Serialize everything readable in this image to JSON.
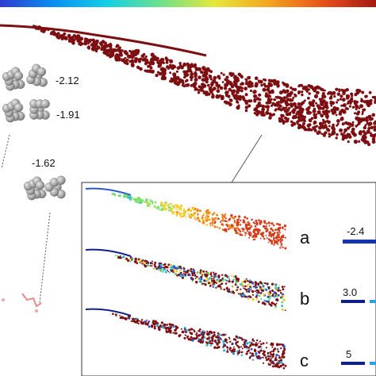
{
  "colorbar": {
    "gradient": [
      "#2f3bd1",
      "#0a8ff0",
      "#13d0e6",
      "#6fe08a",
      "#e6e83a",
      "#f3a520",
      "#e8531c",
      "#a51812"
    ]
  },
  "main_cloud": {
    "color": "#7d0f12"
  },
  "cluster_labels": [
    {
      "value": "-2.12"
    },
    {
      "value": "-1.91"
    },
    {
      "value": "-1.62"
    }
  ],
  "panels": [
    {
      "letter": "a",
      "scale_label": "-2.4",
      "bar_color": "#1733b0",
      "accent_color": "#2c6fe0"
    },
    {
      "letter": "b",
      "scale_label": "3.0",
      "bar_color": "#0e1f8a",
      "accent_color": "#2aa0e8"
    },
    {
      "letter": "c",
      "scale_label": "5",
      "bar_color": "#0e1f8a",
      "accent_color": "#2aa0e8"
    }
  ],
  "colors": {
    "cluster_fill": "#a5a5a5",
    "leader_line": "#555555",
    "faint_marks": "#f0a8a8",
    "inset_border": "#333333"
  }
}
